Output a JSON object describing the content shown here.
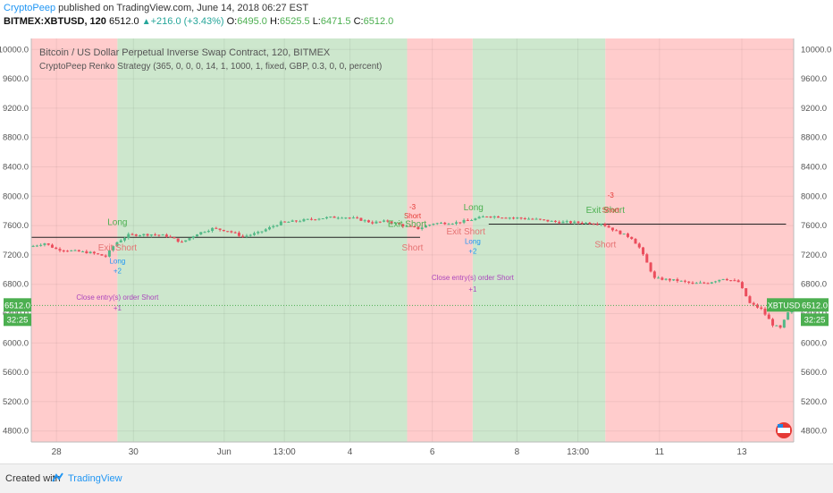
{
  "header": {
    "author": "CryptoPeep",
    "published_text": "published on TradingView.com, June 14, 2018 06:27 EST",
    "symbol_line": "BITMEX:XBTUSD, 120",
    "last": "6512.0",
    "change": "+216.0 (+3.43%)",
    "o_label": "O:",
    "o_val": "6495.0",
    "h_label": "H:",
    "h_val": "6525.5",
    "l_label": "L:",
    "l_val": "6471.5",
    "c_label": "C:",
    "c_val": "6512.0"
  },
  "chart_data": {
    "type": "candlestick",
    "title": "Bitcoin / US Dollar Perpetual Inverse Swap Contract, 120, BITMEX",
    "subtitle": "CryptoPeep Renko Strategy (365, 0, 0, 0, 14, 1, 1000, 1, fixed, GBP, 0.3, 0, 0, percent)",
    "y_ticks": [
      10000,
      9600,
      9200,
      8800,
      8400,
      8000,
      7600,
      7200,
      6800,
      6400,
      6000,
      5600,
      5200,
      4800
    ],
    "y_tick_labels": [
      "10000.0",
      "9600.0",
      "9200.0",
      "8800.0",
      "8400.0",
      "8000.0",
      "7600.0",
      "7200.0",
      "6800.0",
      "6400.0",
      "6000.0",
      "5600.0",
      "5200.0",
      "4800.0"
    ],
    "ylim": [
      4650,
      10150
    ],
    "x_tick_labels": [
      "28",
      "30",
      "Jun",
      "13:00",
      "4",
      "6",
      "8",
      "13:00",
      "11",
      "13"
    ],
    "x_tick_pos": [
      0.033,
      0.134,
      0.253,
      0.332,
      0.418,
      0.526,
      0.637,
      0.717,
      0.824,
      0.932
    ],
    "last_price": 6512.0,
    "last_label": "6512.0",
    "countdown": "32:25",
    "symbol_tag": "XBTUSD",
    "grid": true,
    "regions": [
      {
        "from": 0.0,
        "to": 0.113,
        "color": "#ffcccc"
      },
      {
        "from": 0.113,
        "to": 0.493,
        "color": "#cde7cd"
      },
      {
        "from": 0.493,
        "to": 0.579,
        "color": "#ffcccc"
      },
      {
        "from": 0.579,
        "to": 0.753,
        "color": "#cde7cd"
      },
      {
        "from": 0.753,
        "to": 1.0,
        "color": "#ffcccc"
      }
    ],
    "ref_lines": [
      {
        "y": 7440,
        "from": 0.0,
        "to": 0.51
      },
      {
        "y": 7620,
        "from": 0.6,
        "to": 0.99
      }
    ],
    "close_path": [
      [
        0.0,
        7310
      ],
      [
        0.02,
        7360
      ],
      [
        0.035,
        7280
      ],
      [
        0.06,
        7250
      ],
      [
        0.08,
        7230
      ],
      [
        0.1,
        7180
      ],
      [
        0.113,
        7360
      ],
      [
        0.13,
        7470
      ],
      [
        0.16,
        7480
      ],
      [
        0.18,
        7460
      ],
      [
        0.2,
        7370
      ],
      [
        0.22,
        7490
      ],
      [
        0.24,
        7560
      ],
      [
        0.26,
        7530
      ],
      [
        0.28,
        7450
      ],
      [
        0.3,
        7500
      ],
      [
        0.33,
        7640
      ],
      [
        0.35,
        7660
      ],
      [
        0.38,
        7700
      ],
      [
        0.41,
        7720
      ],
      [
        0.43,
        7690
      ],
      [
        0.45,
        7640
      ],
      [
        0.47,
        7660
      ],
      [
        0.493,
        7590
      ],
      [
        0.51,
        7560
      ],
      [
        0.53,
        7630
      ],
      [
        0.56,
        7640
      ],
      [
        0.58,
        7680
      ],
      [
        0.6,
        7730
      ],
      [
        0.63,
        7710
      ],
      [
        0.66,
        7690
      ],
      [
        0.69,
        7650
      ],
      [
        0.72,
        7640
      ],
      [
        0.75,
        7630
      ],
      [
        0.77,
        7520
      ],
      [
        0.79,
        7430
      ],
      [
        0.8,
        7300
      ],
      [
        0.82,
        6880
      ],
      [
        0.85,
        6850
      ],
      [
        0.87,
        6810
      ],
      [
        0.89,
        6820
      ],
      [
        0.91,
        6880
      ],
      [
        0.93,
        6830
      ],
      [
        0.945,
        6540
      ],
      [
        0.96,
        6460
      ],
      [
        0.975,
        6250
      ],
      [
        0.985,
        6200
      ],
      [
        1.0,
        6512
      ]
    ],
    "markers": [
      {
        "x": 0.113,
        "y": 7610,
        "text": "Long",
        "color": "#4caf50",
        "size": 10
      },
      {
        "x": 0.113,
        "y": 7260,
        "text": "Exit Short",
        "color": "#e57373",
        "size": 10
      },
      {
        "x": 0.113,
        "y": 7080,
        "text": "Long",
        "color": "#2196f3",
        "size": 8
      },
      {
        "x": 0.113,
        "y": 6950,
        "text": "+2",
        "color": "#2196f3",
        "size": 8
      },
      {
        "x": 0.113,
        "y": 6590,
        "text": "Close entry(s) order Short",
        "color": "#ab47bc",
        "size": 8
      },
      {
        "x": 0.113,
        "y": 6440,
        "text": "+1",
        "color": "#ab47bc",
        "size": 8
      },
      {
        "x": 0.493,
        "y": 7580,
        "text": "Exit Short",
        "color": "#4caf50",
        "size": 10
      },
      {
        "x": 0.5,
        "y": 7820,
        "text": "-3",
        "color": "#e53935",
        "size": 8
      },
      {
        "x": 0.5,
        "y": 7700,
        "text": "Short",
        "color": "#e53935",
        "size": 8
      },
      {
        "x": 0.5,
        "y": 7260,
        "text": "Short",
        "color": "#e57373",
        "size": 10
      },
      {
        "x": 0.58,
        "y": 7810,
        "text": "Long",
        "color": "#4caf50",
        "size": 10
      },
      {
        "x": 0.57,
        "y": 7480,
        "text": "Exit Short",
        "color": "#e57373",
        "size": 10
      },
      {
        "x": 0.579,
        "y": 7350,
        "text": "Long",
        "color": "#2196f3",
        "size": 8
      },
      {
        "x": 0.579,
        "y": 7220,
        "text": "+2",
        "color": "#2196f3",
        "size": 8
      },
      {
        "x": 0.579,
        "y": 6860,
        "text": "Close entry(s) order Short",
        "color": "#ab47bc",
        "size": 8
      },
      {
        "x": 0.579,
        "y": 6700,
        "text": "+1",
        "color": "#ab47bc",
        "size": 8
      },
      {
        "x": 0.753,
        "y": 7770,
        "text": "Exit Short",
        "color": "#4caf50",
        "size": 10
      },
      {
        "x": 0.76,
        "y": 7980,
        "text": "-3",
        "color": "#e53935",
        "size": 8
      },
      {
        "x": 0.76,
        "y": 7780,
        "text": "Short",
        "color": "#e53935",
        "size": 8
      },
      {
        "x": 0.753,
        "y": 7300,
        "text": "Short",
        "color": "#e57373",
        "size": 10
      }
    ]
  },
  "footer": {
    "created_label": "Created with",
    "brand": "TradingView"
  }
}
